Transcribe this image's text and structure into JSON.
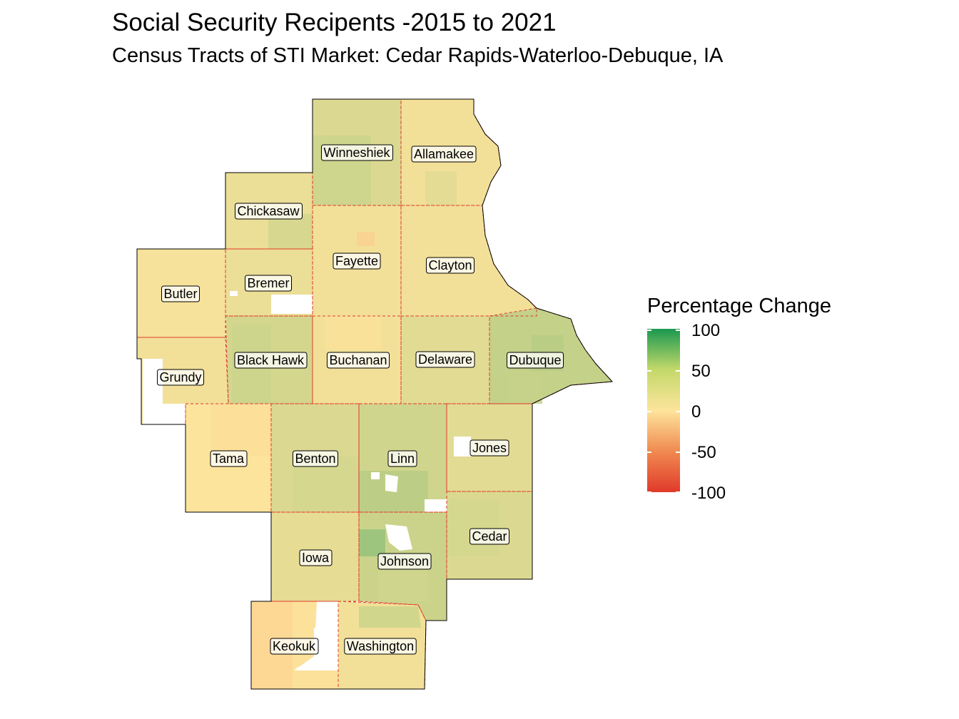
{
  "title": "Social Security Recipents -2015 to 2021",
  "subtitle": "Census Tracts of STI Market: Cedar Rapids-Waterloo-Debuque, IA",
  "legend": {
    "title": "Percentage Change",
    "ticks": [
      "100",
      "50",
      "0",
      "-50",
      "-100"
    ],
    "colors": {
      "high": "#1a9850",
      "mid": "#fde49c",
      "low": "#e03a2a"
    }
  },
  "counties": [
    {
      "name": "Winneshiek",
      "value": 15
    },
    {
      "name": "Allamakee",
      "value": 5
    },
    {
      "name": "Chickasaw",
      "value": 8
    },
    {
      "name": "Fayette",
      "value": 5
    },
    {
      "name": "Clayton",
      "value": 5
    },
    {
      "name": "Bremer",
      "value": 8
    },
    {
      "name": "Butler",
      "value": 3
    },
    {
      "name": "Grundy",
      "value": 5
    },
    {
      "name": "Black Hawk",
      "value": 18
    },
    {
      "name": "Buchanan",
      "value": 5
    },
    {
      "name": "Delaware",
      "value": 12
    },
    {
      "name": "Dubuque",
      "value": 25
    },
    {
      "name": "Tama",
      "value": 0
    },
    {
      "name": "Benton",
      "value": 15
    },
    {
      "name": "Linn",
      "value": 20
    },
    {
      "name": "Jones",
      "value": 12
    },
    {
      "name": "Iowa",
      "value": 10
    },
    {
      "name": "Johnson",
      "value": 22
    },
    {
      "name": "Cedar",
      "value": 15
    },
    {
      "name": "Keokuk",
      "value": -2
    },
    {
      "name": "Washington",
      "value": 5
    }
  ]
}
